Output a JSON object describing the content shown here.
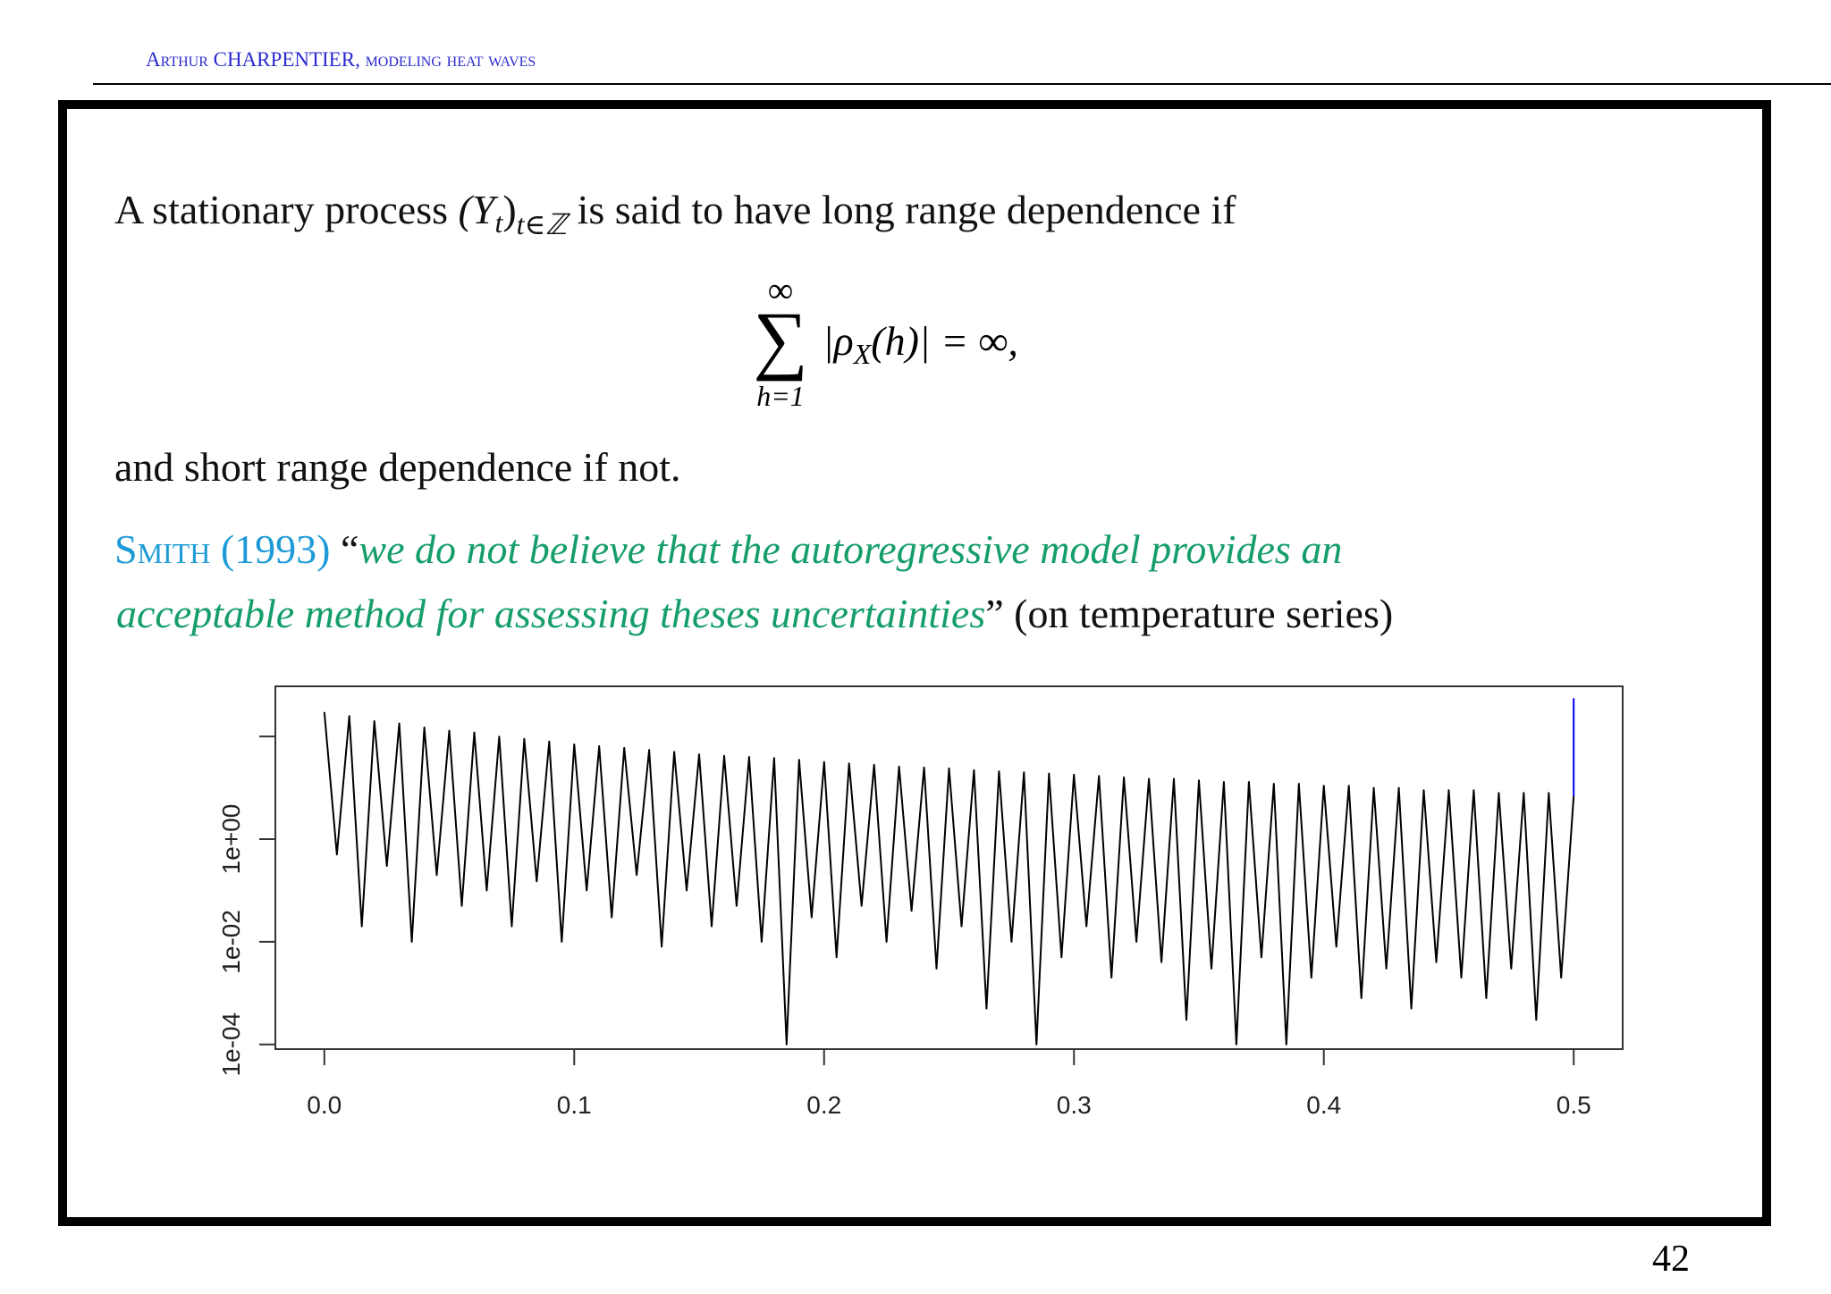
{
  "header": {
    "title": "Arthur CHARPENTIER, modeling heat waves"
  },
  "body": {
    "definition": {
      "before": "A stationary process ",
      "open": "(Y",
      "sub": "t",
      "close": ")",
      "index": "t∈ℤ",
      "after": " is said to have long range dependence if"
    },
    "equation": {
      "upper": "∞",
      "sum": "∑",
      "lower": "h=1",
      "term": "|ρ",
      "term_sub": "X",
      "rest": "(h)| = ∞,"
    },
    "conclusion": "and short range dependence if not.",
    "citation": {
      "author": "Smith (1993)",
      "open_quote": " “",
      "quote_line1": "we do not believe that the autoregressive model provides an",
      "quote_line2": "acceptable method for assessing theses uncertainties",
      "after": "” (on temperature series)"
    }
  },
  "page_number": "42",
  "chart_data": {
    "type": "line",
    "ylog": true,
    "xlim": [
      -0.0196,
      0.5196
    ],
    "ylim": [
      8.1e-05,
      950
    ],
    "xticks": [
      {
        "value": 0,
        "label": "0.0"
      },
      0.1,
      0.2,
      0.3,
      0.4,
      0.5
    ],
    "yticks": [
      {
        "value": 0.0001,
        "label": "1e-04"
      },
      {
        "value": 0.01,
        "label": "1e-02"
      },
      {
        "value": 1,
        "label": "1e+00"
      },
      {
        "value": 100,
        "label": null
      }
    ],
    "series": [
      {
        "color": "#000000",
        "x": [
          0,
          0.005,
          0.01,
          0.015,
          0.02,
          0.025,
          0.03,
          0.035,
          0.04,
          0.045,
          0.05,
          0.055,
          0.06,
          0.065,
          0.07,
          0.075,
          0.08,
          0.085,
          0.09,
          0.095,
          0.1,
          0.105,
          0.11,
          0.115,
          0.12,
          0.125,
          0.13,
          0.135,
          0.14,
          0.145,
          0.15,
          0.155,
          0.16,
          0.165,
          0.17,
          0.175,
          0.18,
          0.185,
          0.19,
          0.195,
          0.2,
          0.205,
          0.21,
          0.215,
          0.22,
          0.225,
          0.23,
          0.235,
          0.24,
          0.245,
          0.25,
          0.255,
          0.26,
          0.265,
          0.27,
          0.275,
          0.28,
          0.285,
          0.29,
          0.295,
          0.3,
          0.305,
          0.31,
          0.315,
          0.32,
          0.325,
          0.33,
          0.335,
          0.34,
          0.345,
          0.35,
          0.355,
          0.36,
          0.365,
          0.37,
          0.375,
          0.38,
          0.385,
          0.39,
          0.395,
          0.4,
          0.405,
          0.41,
          0.415,
          0.42,
          0.425,
          0.43,
          0.435,
          0.44,
          0.445,
          0.45,
          0.455,
          0.46,
          0.465,
          0.47,
          0.475,
          0.48,
          0.485,
          0.49,
          0.495,
          0.5
        ],
        "values": [
          300,
          0.5,
          250,
          0.02,
          200,
          0.3,
          180,
          0.01,
          150,
          0.2,
          130,
          0.05,
          120,
          0.1,
          100,
          0.02,
          90,
          0.15,
          80,
          0.01,
          70,
          0.1,
          65,
          0.03,
          60,
          0.2,
          55,
          0.008,
          50,
          0.1,
          45,
          0.02,
          42,
          0.05,
          40,
          0.01,
          38,
          0.0001,
          35,
          0.03,
          32,
          0.005,
          30,
          0.05,
          28,
          0.01,
          26,
          0.04,
          25,
          0.003,
          24,
          0.02,
          22,
          0.0005,
          21,
          0.01,
          20,
          0.0001,
          19,
          0.005,
          18,
          0.02,
          17,
          0.002,
          16,
          0.01,
          15,
          0.004,
          15,
          0.0003,
          14,
          0.003,
          13,
          0.0001,
          13,
          0.005,
          12,
          0.0001,
          12,
          0.002,
          11,
          0.008,
          11,
          0.0008,
          10,
          0.003,
          10,
          0.0005,
          9,
          0.004,
          9,
          0.002,
          9,
          0.0008,
          8,
          0.003,
          8,
          0.0003,
          8,
          0.002,
          7
        ]
      },
      {
        "color": "#0000ff",
        "x": [
          0.5,
          0.5
        ],
        "values": [
          7,
          560
        ]
      }
    ]
  }
}
